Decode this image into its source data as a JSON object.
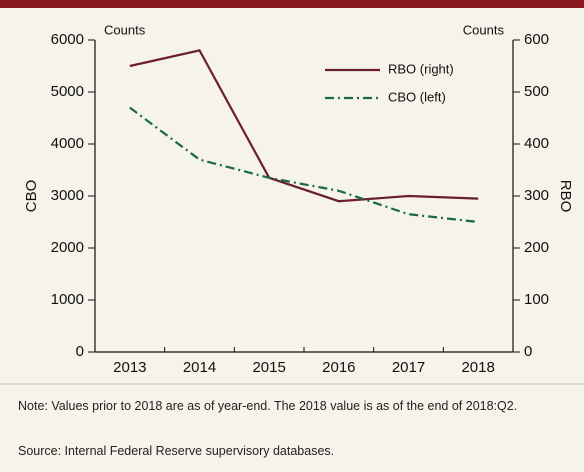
{
  "chart_data": {
    "type": "line",
    "categories": [
      "2013",
      "2014",
      "2015",
      "2016",
      "2017",
      "2018"
    ],
    "series": [
      {
        "name": "RBO (right)",
        "color": "#6b1f2a",
        "axis": "y2",
        "dash": "solid",
        "values": [
          550,
          580,
          335,
          290,
          300,
          295
        ]
      },
      {
        "name": "CBO (left)",
        "color": "#1a6b3a",
        "dash": "dashdot",
        "values": [
          4700,
          3700,
          3350,
          3100,
          2650,
          2500
        ]
      }
    ],
    "ylabel": "CBO",
    "y2label": "RBO",
    "yunit": "Counts",
    "y2unit": "Counts",
    "ylim": [
      0,
      6000
    ],
    "yticks": [
      0,
      1000,
      2000,
      3000,
      4000,
      5000,
      6000
    ],
    "y2lim": [
      0,
      600
    ],
    "y2ticks": [
      0,
      100,
      200,
      300,
      400,
      500,
      600
    ],
    "grid": false,
    "legend": "upper right",
    "note": "Note: Values prior to 2018 are as of year-end. The 2018 value is as of the end of 2018:Q2.",
    "source": "Source: Internal Federal Reserve supervisory databases."
  }
}
